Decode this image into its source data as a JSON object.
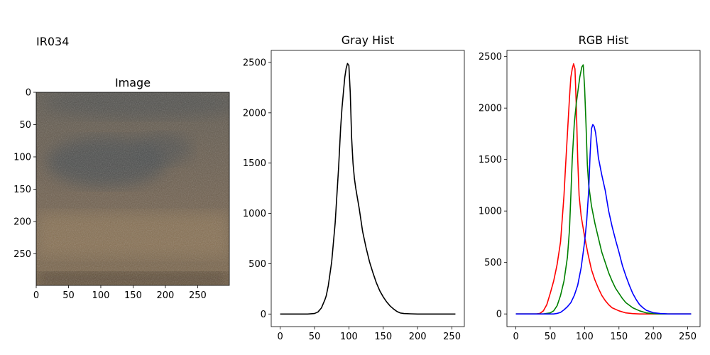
{
  "figure_label": "IR034",
  "chart_data": [
    {
      "type": "image",
      "title": "Image",
      "xlim": [
        0,
        299
      ],
      "ylim": [
        299,
        0
      ],
      "x_ticks": [
        0,
        50,
        100,
        150,
        200,
        250
      ],
      "y_ticks": [
        0,
        50,
        100,
        150,
        200,
        250
      ],
      "colors": {
        "base_top": "#5c564c",
        "base_mid": "#6e5e4c",
        "base_bottom": "#7a6448",
        "dark_patch": "#45494b",
        "light_band": "#8c7352",
        "bottom_edge": "#4a3a2c"
      }
    },
    {
      "type": "line",
      "title": "Gray Hist",
      "xlim": [
        -13,
        268
      ],
      "ylim": [
        -125,
        2620
      ],
      "x_ticks": [
        0,
        50,
        100,
        150,
        200,
        250
      ],
      "y_ticks": [
        0,
        500,
        1000,
        1500,
        2000,
        2500
      ],
      "series": [
        {
          "color": "#000000",
          "points": [
            [
              0,
              0
            ],
            [
              40,
              0
            ],
            [
              50,
              5
            ],
            [
              55,
              20
            ],
            [
              60,
              60
            ],
            [
              65,
              140
            ],
            [
              67,
              180
            ],
            [
              70,
              280
            ],
            [
              75,
              520
            ],
            [
              80,
              900
            ],
            [
              85,
              1450
            ],
            [
              88,
              1850
            ],
            [
              90,
              2050
            ],
            [
              92,
              2200
            ],
            [
              94,
              2350
            ],
            [
              96,
              2440
            ],
            [
              98,
              2490
            ],
            [
              100,
              2470
            ],
            [
              102,
              2200
            ],
            [
              104,
              1750
            ],
            [
              106,
              1500
            ],
            [
              108,
              1350
            ],
            [
              110,
              1250
            ],
            [
              115,
              1050
            ],
            [
              120,
              820
            ],
            [
              125,
              660
            ],
            [
              130,
              520
            ],
            [
              135,
              410
            ],
            [
              140,
              310
            ],
            [
              145,
              230
            ],
            [
              150,
              170
            ],
            [
              155,
              120
            ],
            [
              160,
              80
            ],
            [
              165,
              50
            ],
            [
              170,
              25
            ],
            [
              175,
              10
            ],
            [
              180,
              5
            ],
            [
              190,
              2
            ],
            [
              200,
              0
            ],
            [
              255,
              0
            ]
          ]
        }
      ]
    },
    {
      "type": "line",
      "title": "RGB Hist",
      "xlim": [
        -13,
        268
      ],
      "ylim": [
        -123,
        2560
      ],
      "x_ticks": [
        0,
        50,
        100,
        150,
        200,
        250
      ],
      "y_ticks": [
        0,
        500,
        1000,
        1500,
        2000,
        2500
      ],
      "series": [
        {
          "color": "#ff0000",
          "points": [
            [
              0,
              0
            ],
            [
              30,
              0
            ],
            [
              35,
              5
            ],
            [
              40,
              30
            ],
            [
              45,
              90
            ],
            [
              50,
              200
            ],
            [
              55,
              320
            ],
            [
              60,
              480
            ],
            [
              65,
              700
            ],
            [
              70,
              1150
            ],
            [
              72,
              1400
            ],
            [
              75,
              1750
            ],
            [
              78,
              2100
            ],
            [
              80,
              2300
            ],
            [
              82,
              2380
            ],
            [
              84,
              2430
            ],
            [
              86,
              2380
            ],
            [
              88,
              2000
            ],
            [
              90,
              1500
            ],
            [
              92,
              1150
            ],
            [
              95,
              950
            ],
            [
              100,
              750
            ],
            [
              105,
              580
            ],
            [
              110,
              430
            ],
            [
              115,
              330
            ],
            [
              120,
              250
            ],
            [
              125,
              180
            ],
            [
              130,
              130
            ],
            [
              135,
              90
            ],
            [
              140,
              60
            ],
            [
              150,
              30
            ],
            [
              160,
              10
            ],
            [
              170,
              3
            ],
            [
              180,
              0
            ],
            [
              255,
              0
            ]
          ]
        },
        {
          "color": "#008000",
          "points": [
            [
              0,
              0
            ],
            [
              40,
              0
            ],
            [
              50,
              10
            ],
            [
              55,
              30
            ],
            [
              60,
              80
            ],
            [
              65,
              180
            ],
            [
              70,
              320
            ],
            [
              75,
              550
            ],
            [
              78,
              820
            ],
            [
              80,
              1150
            ],
            [
              82,
              1500
            ],
            [
              85,
              1850
            ],
            [
              88,
              2050
            ],
            [
              90,
              2150
            ],
            [
              93,
              2300
            ],
            [
              96,
              2400
            ],
            [
              98,
              2420
            ],
            [
              100,
              2200
            ],
            [
              102,
              1850
            ],
            [
              104,
              1450
            ],
            [
              106,
              1250
            ],
            [
              110,
              1050
            ],
            [
              115,
              880
            ],
            [
              120,
              740
            ],
            [
              125,
              600
            ],
            [
              130,
              500
            ],
            [
              135,
              400
            ],
            [
              140,
              320
            ],
            [
              145,
              250
            ],
            [
              150,
              200
            ],
            [
              155,
              150
            ],
            [
              160,
              110
            ],
            [
              170,
              60
            ],
            [
              180,
              30
            ],
            [
              190,
              10
            ],
            [
              200,
              3
            ],
            [
              210,
              0
            ],
            [
              255,
              0
            ]
          ]
        },
        {
          "color": "#0000ff",
          "points": [
            [
              0,
              0
            ],
            [
              55,
              0
            ],
            [
              60,
              5
            ],
            [
              65,
              15
            ],
            [
              70,
              40
            ],
            [
              75,
              70
            ],
            [
              80,
              110
            ],
            [
              85,
              180
            ],
            [
              90,
              280
            ],
            [
              95,
              450
            ],
            [
              100,
              700
            ],
            [
              103,
              900
            ],
            [
              106,
              1200
            ],
            [
              108,
              1550
            ],
            [
              110,
              1800
            ],
            [
              112,
              1840
            ],
            [
              114,
              1820
            ],
            [
              116,
              1760
            ],
            [
              118,
              1650
            ],
            [
              120,
              1520
            ],
            [
              125,
              1350
            ],
            [
              130,
              1200
            ],
            [
              135,
              1000
            ],
            [
              140,
              850
            ],
            [
              145,
              720
            ],
            [
              150,
              600
            ],
            [
              155,
              470
            ],
            [
              160,
              370
            ],
            [
              165,
              280
            ],
            [
              170,
              200
            ],
            [
              175,
              140
            ],
            [
              180,
              90
            ],
            [
              185,
              60
            ],
            [
              190,
              35
            ],
            [
              200,
              12
            ],
            [
              210,
              4
            ],
            [
              220,
              1
            ],
            [
              230,
              0
            ],
            [
              255,
              0
            ]
          ]
        }
      ]
    }
  ]
}
